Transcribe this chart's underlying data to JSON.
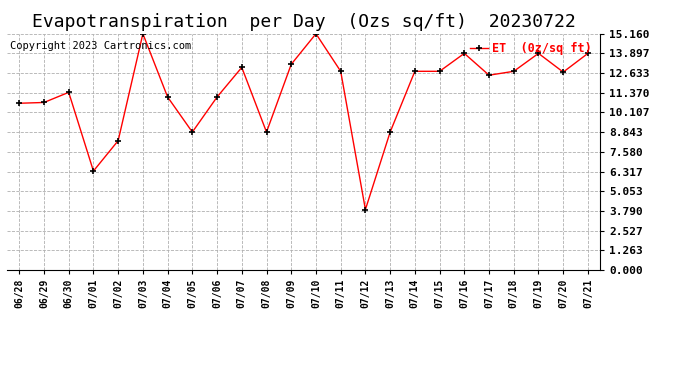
{
  "title": "Evapotranspiration  per Day  (Ozs sq/ft)  20230722",
  "copyright": "Copyright 2023 Cartronics.com",
  "legend_label": "ET  (0z/sq ft)",
  "dates": [
    "06/28",
    "06/29",
    "06/30",
    "07/01",
    "07/02",
    "07/03",
    "07/04",
    "07/05",
    "07/06",
    "07/07",
    "07/08",
    "07/09",
    "07/10",
    "07/11",
    "07/12",
    "07/13",
    "07/14",
    "07/15",
    "07/16",
    "07/17",
    "07/18",
    "07/19",
    "07/20",
    "07/21"
  ],
  "values": [
    10.7,
    10.75,
    11.4,
    6.35,
    8.3,
    15.16,
    11.1,
    8.85,
    11.1,
    13.0,
    8.85,
    13.2,
    15.16,
    12.75,
    3.88,
    8.85,
    12.75,
    12.75,
    13.9,
    12.5,
    12.75,
    13.9,
    12.7,
    13.9
  ],
  "line_color": "red",
  "marker_color": "black",
  "marker": "+",
  "background_color": "#ffffff",
  "grid_color": "#b0b0b0",
  "yticks": [
    0.0,
    1.263,
    2.527,
    3.79,
    5.053,
    6.317,
    7.58,
    8.843,
    10.107,
    11.37,
    12.633,
    13.897,
    15.16
  ],
  "ylim": [
    0.0,
    15.16
  ],
  "title_fontsize": 13,
  "legend_color": "red",
  "copyright_color": "black",
  "copyright_fontsize": 7.5
}
